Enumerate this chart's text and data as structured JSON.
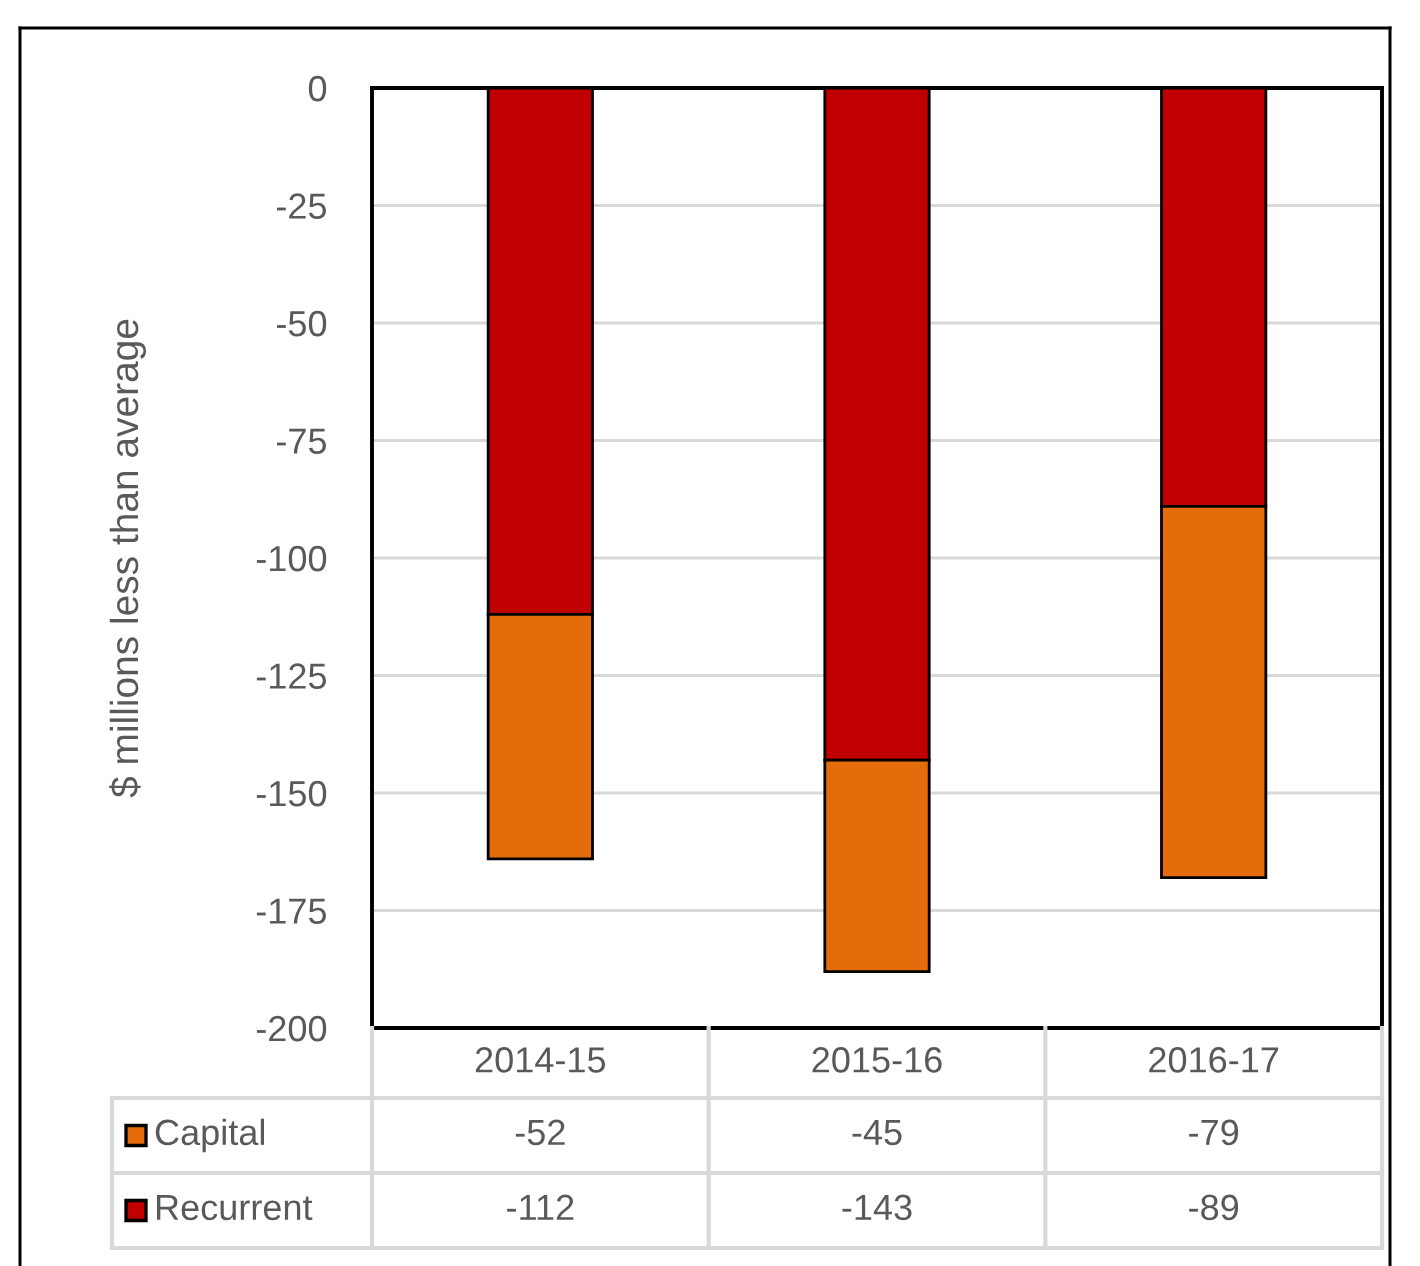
{
  "chart_data": {
    "type": "bar",
    "ylabel": "$ millions less than average",
    "categories": [
      "2014-15",
      "2015-16",
      "2016-17"
    ],
    "series": [
      {
        "name": "Recurrent",
        "color": "#c00000",
        "values": [
          -112,
          -143,
          -89
        ]
      },
      {
        "name": "Capital",
        "color": "#e46c0a",
        "values": [
          -52,
          -45,
          -79
        ]
      }
    ],
    "stacked": true,
    "ylim": [
      -200,
      0
    ],
    "yticks": [
      0,
      -25,
      -50,
      -75,
      -100,
      -125,
      -150,
      -175,
      -200
    ],
    "grid": "y",
    "data_labels": true,
    "legend": "bottom"
  }
}
